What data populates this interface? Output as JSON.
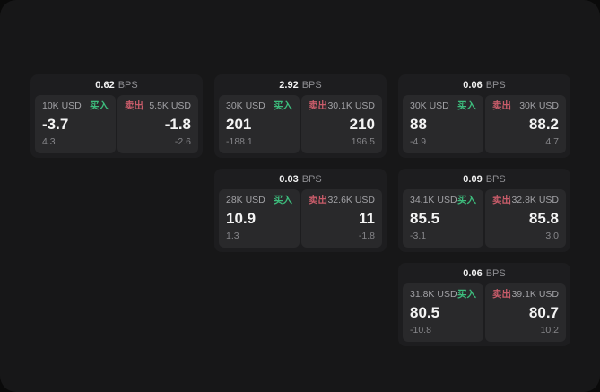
{
  "labels": {
    "buy": "买入",
    "sell": "卖出",
    "bps": "BPS"
  },
  "colors": {
    "buy_accent": "#3dbd7d",
    "sell_accent": "#c95c6a",
    "background": "#171718",
    "card": "#1d1d1f",
    "panel": "#29292b"
  },
  "cards": [
    {
      "bps": "0.62",
      "buy": {
        "amount": "10K USD",
        "price": "-3.7",
        "sub": "4.3"
      },
      "sell": {
        "amount": "5.5K USD",
        "price": "-1.8",
        "sub": "-2.6"
      }
    },
    {
      "bps": "2.92",
      "buy": {
        "amount": "30K USD",
        "price": "201",
        "sub": "-188.1"
      },
      "sell": {
        "amount": "30.1K USD",
        "price": "210",
        "sub": "196.5"
      }
    },
    {
      "bps": "0.06",
      "buy": {
        "amount": "30K USD",
        "price": "88",
        "sub": "-4.9"
      },
      "sell": {
        "amount": "30K USD",
        "price": "88.2",
        "sub": "4.7"
      }
    },
    {
      "bps": "0.03",
      "buy": {
        "amount": "28K USD",
        "price": "10.9",
        "sub": "1.3"
      },
      "sell": {
        "amount": "32.6K USD",
        "price": "11",
        "sub": "-1.8"
      }
    },
    {
      "bps": "0.09",
      "buy": {
        "amount": "34.1K USD",
        "price": "85.5",
        "sub": "-3.1"
      },
      "sell": {
        "amount": "32.8K USD",
        "price": "85.8",
        "sub": "3.0"
      }
    },
    {
      "bps": "0.06",
      "buy": {
        "amount": "31.8K USD",
        "price": "80.5",
        "sub": "-10.8"
      },
      "sell": {
        "amount": "39.1K USD",
        "price": "80.7",
        "sub": "10.2"
      }
    }
  ]
}
